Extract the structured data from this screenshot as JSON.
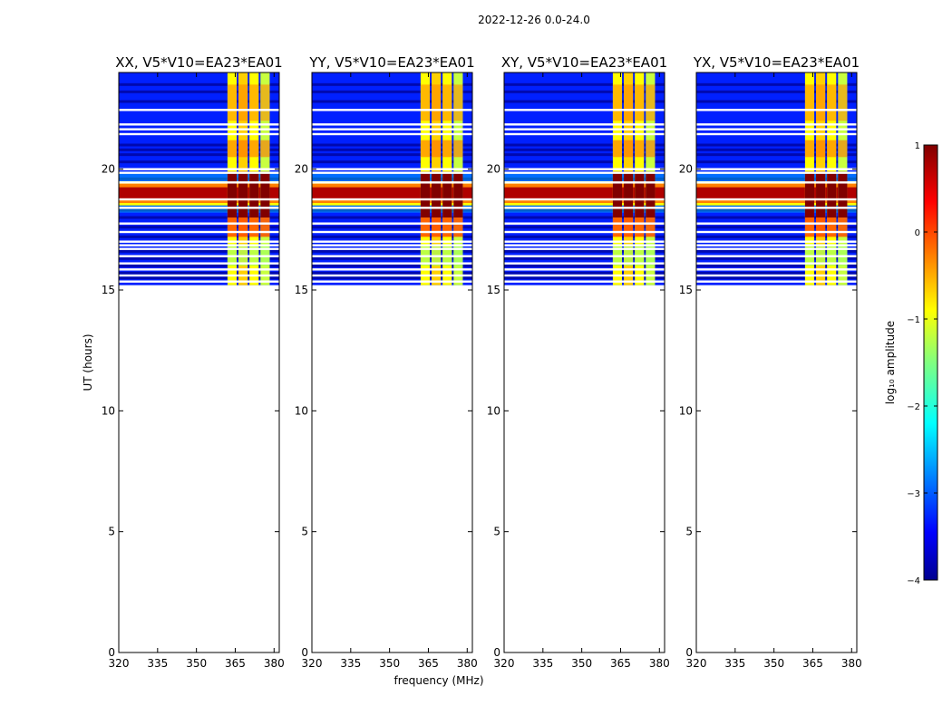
{
  "chart_data": {
    "type": "heatmap",
    "suptitle": "2022-12-26 0.0-24.0",
    "xlabel": "frequency (MHz)",
    "ylabel": "UT (hours)",
    "xlim": [
      320,
      382
    ],
    "ylim": [
      0,
      24
    ],
    "xticks": [
      "320",
      "335",
      "350",
      "365",
      "380"
    ],
    "yticks": [
      "0",
      "5",
      "10",
      "15",
      "20"
    ],
    "data_time_range": [
      15.2,
      24
    ],
    "hot_band_time": [
      18.6,
      19.4
    ],
    "rfi_freq_range": [
      362,
      379
    ],
    "panels": [
      {
        "title": "XX, V5*V10=EA23*EA01"
      },
      {
        "title": "YY, V5*V10=EA23*EA01"
      },
      {
        "title": "XY, V5*V10=EA23*EA01"
      },
      {
        "title": "YX, V5*V10=EA23*EA01"
      }
    ],
    "colorbar": {
      "label": "log₁₀ amplitude",
      "range": [
        -4,
        1
      ],
      "ticks": [
        "−4",
        "−3",
        "−2",
        "−1",
        "0",
        "1"
      ],
      "colormap": "jet"
    },
    "colors": {
      "dark_blue": "#00008f",
      "blue": "#0020ff",
      "cyan": "#00ffff",
      "yellow": "#ffff00",
      "orange": "#ff8000",
      "dark_red": "#800000"
    }
  }
}
